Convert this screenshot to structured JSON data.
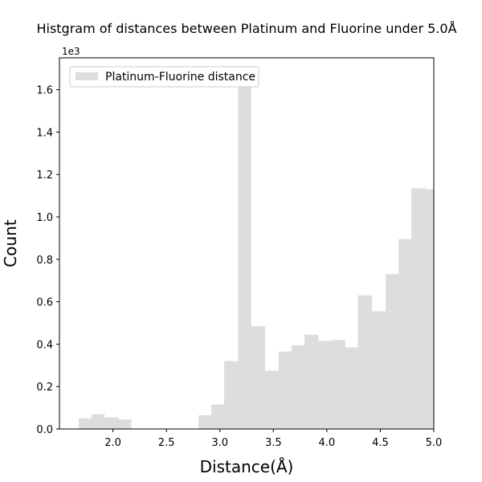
{
  "chart_data": {
    "type": "bar",
    "title": "Histgram of distances between Platinum and Fluorine under 5.0Å",
    "xlabel": "Distance(Å)",
    "ylabel": "Count",
    "y_scale_label": "1e3",
    "xlim": [
      1.5,
      5.0
    ],
    "ylim": [
      0,
      1750
    ],
    "x_ticks": [
      2.0,
      2.5,
      3.0,
      3.5,
      4.0,
      4.5,
      5.0
    ],
    "x_tick_labels": [
      "2.0",
      "2.5",
      "3.0",
      "3.5",
      "4.0",
      "4.5",
      "5.0"
    ],
    "y_ticks": [
      0,
      200,
      400,
      600,
      800,
      1000,
      1200,
      1400,
      1600
    ],
    "y_tick_labels": [
      "0.0",
      "0.2",
      "0.4",
      "0.6",
      "0.8",
      "1.0",
      "1.2",
      "1.4",
      "1.6"
    ],
    "legend": {
      "label": "Platinum-Fluorine distance",
      "placement": "upper-left"
    },
    "grid": false,
    "color": "#dddddd",
    "bin_edges": [
      1.68,
      1.8,
      1.92,
      2.05,
      2.17,
      2.29,
      2.42,
      2.55,
      2.67,
      2.8,
      2.92,
      3.04,
      3.17,
      3.29,
      3.42,
      3.55,
      3.67,
      3.79,
      3.92,
      4.05,
      4.17,
      4.29,
      4.42,
      4.55,
      4.67,
      4.79,
      4.92,
      5.0
    ],
    "values": [
      50,
      70,
      55,
      45,
      0,
      0,
      0,
      0,
      0,
      65,
      115,
      320,
      1640,
      485,
      275,
      365,
      395,
      445,
      415,
      420,
      385,
      630,
      555,
      730,
      895,
      1135,
      1130
    ]
  }
}
